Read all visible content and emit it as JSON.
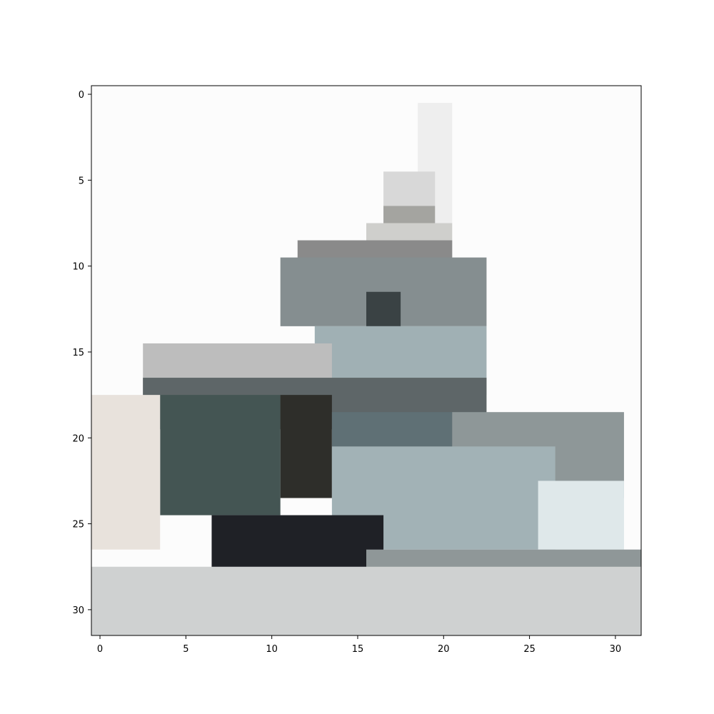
{
  "figure": {
    "background": "#ffffff",
    "axes_color": "#000000"
  },
  "image": {
    "description": "Low-resolution 32x32 pixel image (upscaled, nearest) of a grey ship/boat with a tiered superstructure on pale water under a white sky",
    "grid_size": [
      32,
      32
    ],
    "xlim": [
      -0.5,
      31.5
    ],
    "ylim": [
      31.5,
      -0.5
    ],
    "xticks": [
      0,
      5,
      10,
      15,
      20,
      25,
      30
    ],
    "yticks": [
      0,
      5,
      10,
      15,
      20,
      25,
      30
    ],
    "xtick_labels": [
      "0",
      "5",
      "10",
      "15",
      "20",
      "25",
      "30"
    ],
    "ytick_labels": [
      "0",
      "5",
      "10",
      "15",
      "20",
      "25",
      "30"
    ],
    "colors": {
      "sky": "#fcfcfc",
      "hull_light": "#9aa8ad",
      "hull_dark": "#3e4c4e",
      "cabin": "#7f8a8c",
      "black": "#141414",
      "water_light": "#d8dcde",
      "water_mid": "#a8aca9",
      "shore_warm": "#e8e2dc"
    },
    "regions": [
      {
        "name": "mast-top",
        "rows": [
          1,
          7
        ],
        "cols": [
          19,
          20
        ],
        "color": "#eeeeee"
      },
      {
        "name": "mast-mid",
        "rows": [
          5,
          7
        ],
        "cols": [
          17,
          19
        ],
        "color": "#d8d8d8"
      },
      {
        "name": "mast-dark",
        "rows": [
          7,
          8
        ],
        "cols": [
          17,
          19
        ],
        "color": "#a4a4a0"
      },
      {
        "name": "radar-base",
        "rows": [
          8,
          9
        ],
        "cols": [
          16,
          20
        ],
        "color": "#cfcfcc"
      },
      {
        "name": "bridge-top",
        "rows": [
          9,
          10
        ],
        "cols": [
          12,
          20
        ],
        "color": "#8a8a8a"
      },
      {
        "name": "bridge",
        "rows": [
          10,
          13
        ],
        "cols": [
          11,
          22
        ],
        "color": "#858e90"
      },
      {
        "name": "bridge-window",
        "rows": [
          12,
          13
        ],
        "cols": [
          16,
          17
        ],
        "color": "#3a4244"
      },
      {
        "name": "upper-deck",
        "rows": [
          14,
          17
        ],
        "cols": [
          13,
          22
        ],
        "color": "#a0b0b4"
      },
      {
        "name": "deck-left",
        "rows": [
          15,
          17
        ],
        "cols": [
          3,
          13
        ],
        "color": "#bdbdbd"
      },
      {
        "name": "cabin-band",
        "rows": [
          17,
          19
        ],
        "cols": [
          3,
          22
        ],
        "color": "#5e6668"
      },
      {
        "name": "hull-left",
        "rows": [
          18,
          24
        ],
        "cols": [
          4,
          10
        ],
        "color": "#445553"
      },
      {
        "name": "hull-dark-strip",
        "rows": [
          18,
          23
        ],
        "cols": [
          11,
          13
        ],
        "color": "#2e2e2a"
      },
      {
        "name": "hull-mid",
        "rows": [
          19,
          22
        ],
        "cols": [
          14,
          21
        ],
        "color": "#5f7075"
      },
      {
        "name": "hull-right",
        "rows": [
          19,
          23
        ],
        "cols": [
          21,
          30
        ],
        "color": "#8e9798"
      },
      {
        "name": "hull-lower",
        "rows": [
          21,
          26
        ],
        "cols": [
          14,
          26
        ],
        "color": "#a2b2b6"
      },
      {
        "name": "bow-light",
        "rows": [
          23,
          26
        ],
        "cols": [
          26,
          30
        ],
        "color": "#dfe8ea"
      },
      {
        "name": "waterline-black",
        "rows": [
          25,
          28
        ],
        "cols": [
          7,
          16
        ],
        "color": "#1f2126"
      },
      {
        "name": "waterline-grey",
        "rows": [
          27,
          29
        ],
        "cols": [
          16,
          31
        ],
        "color": "#8f9798"
      },
      {
        "name": "shore-left",
        "rows": [
          18,
          26
        ],
        "cols": [
          0,
          3
        ],
        "color": "#e8e2dc"
      },
      {
        "name": "water",
        "rows": [
          28,
          31
        ],
        "cols": [
          0,
          31
        ],
        "color": "#cfd1d1"
      }
    ]
  }
}
